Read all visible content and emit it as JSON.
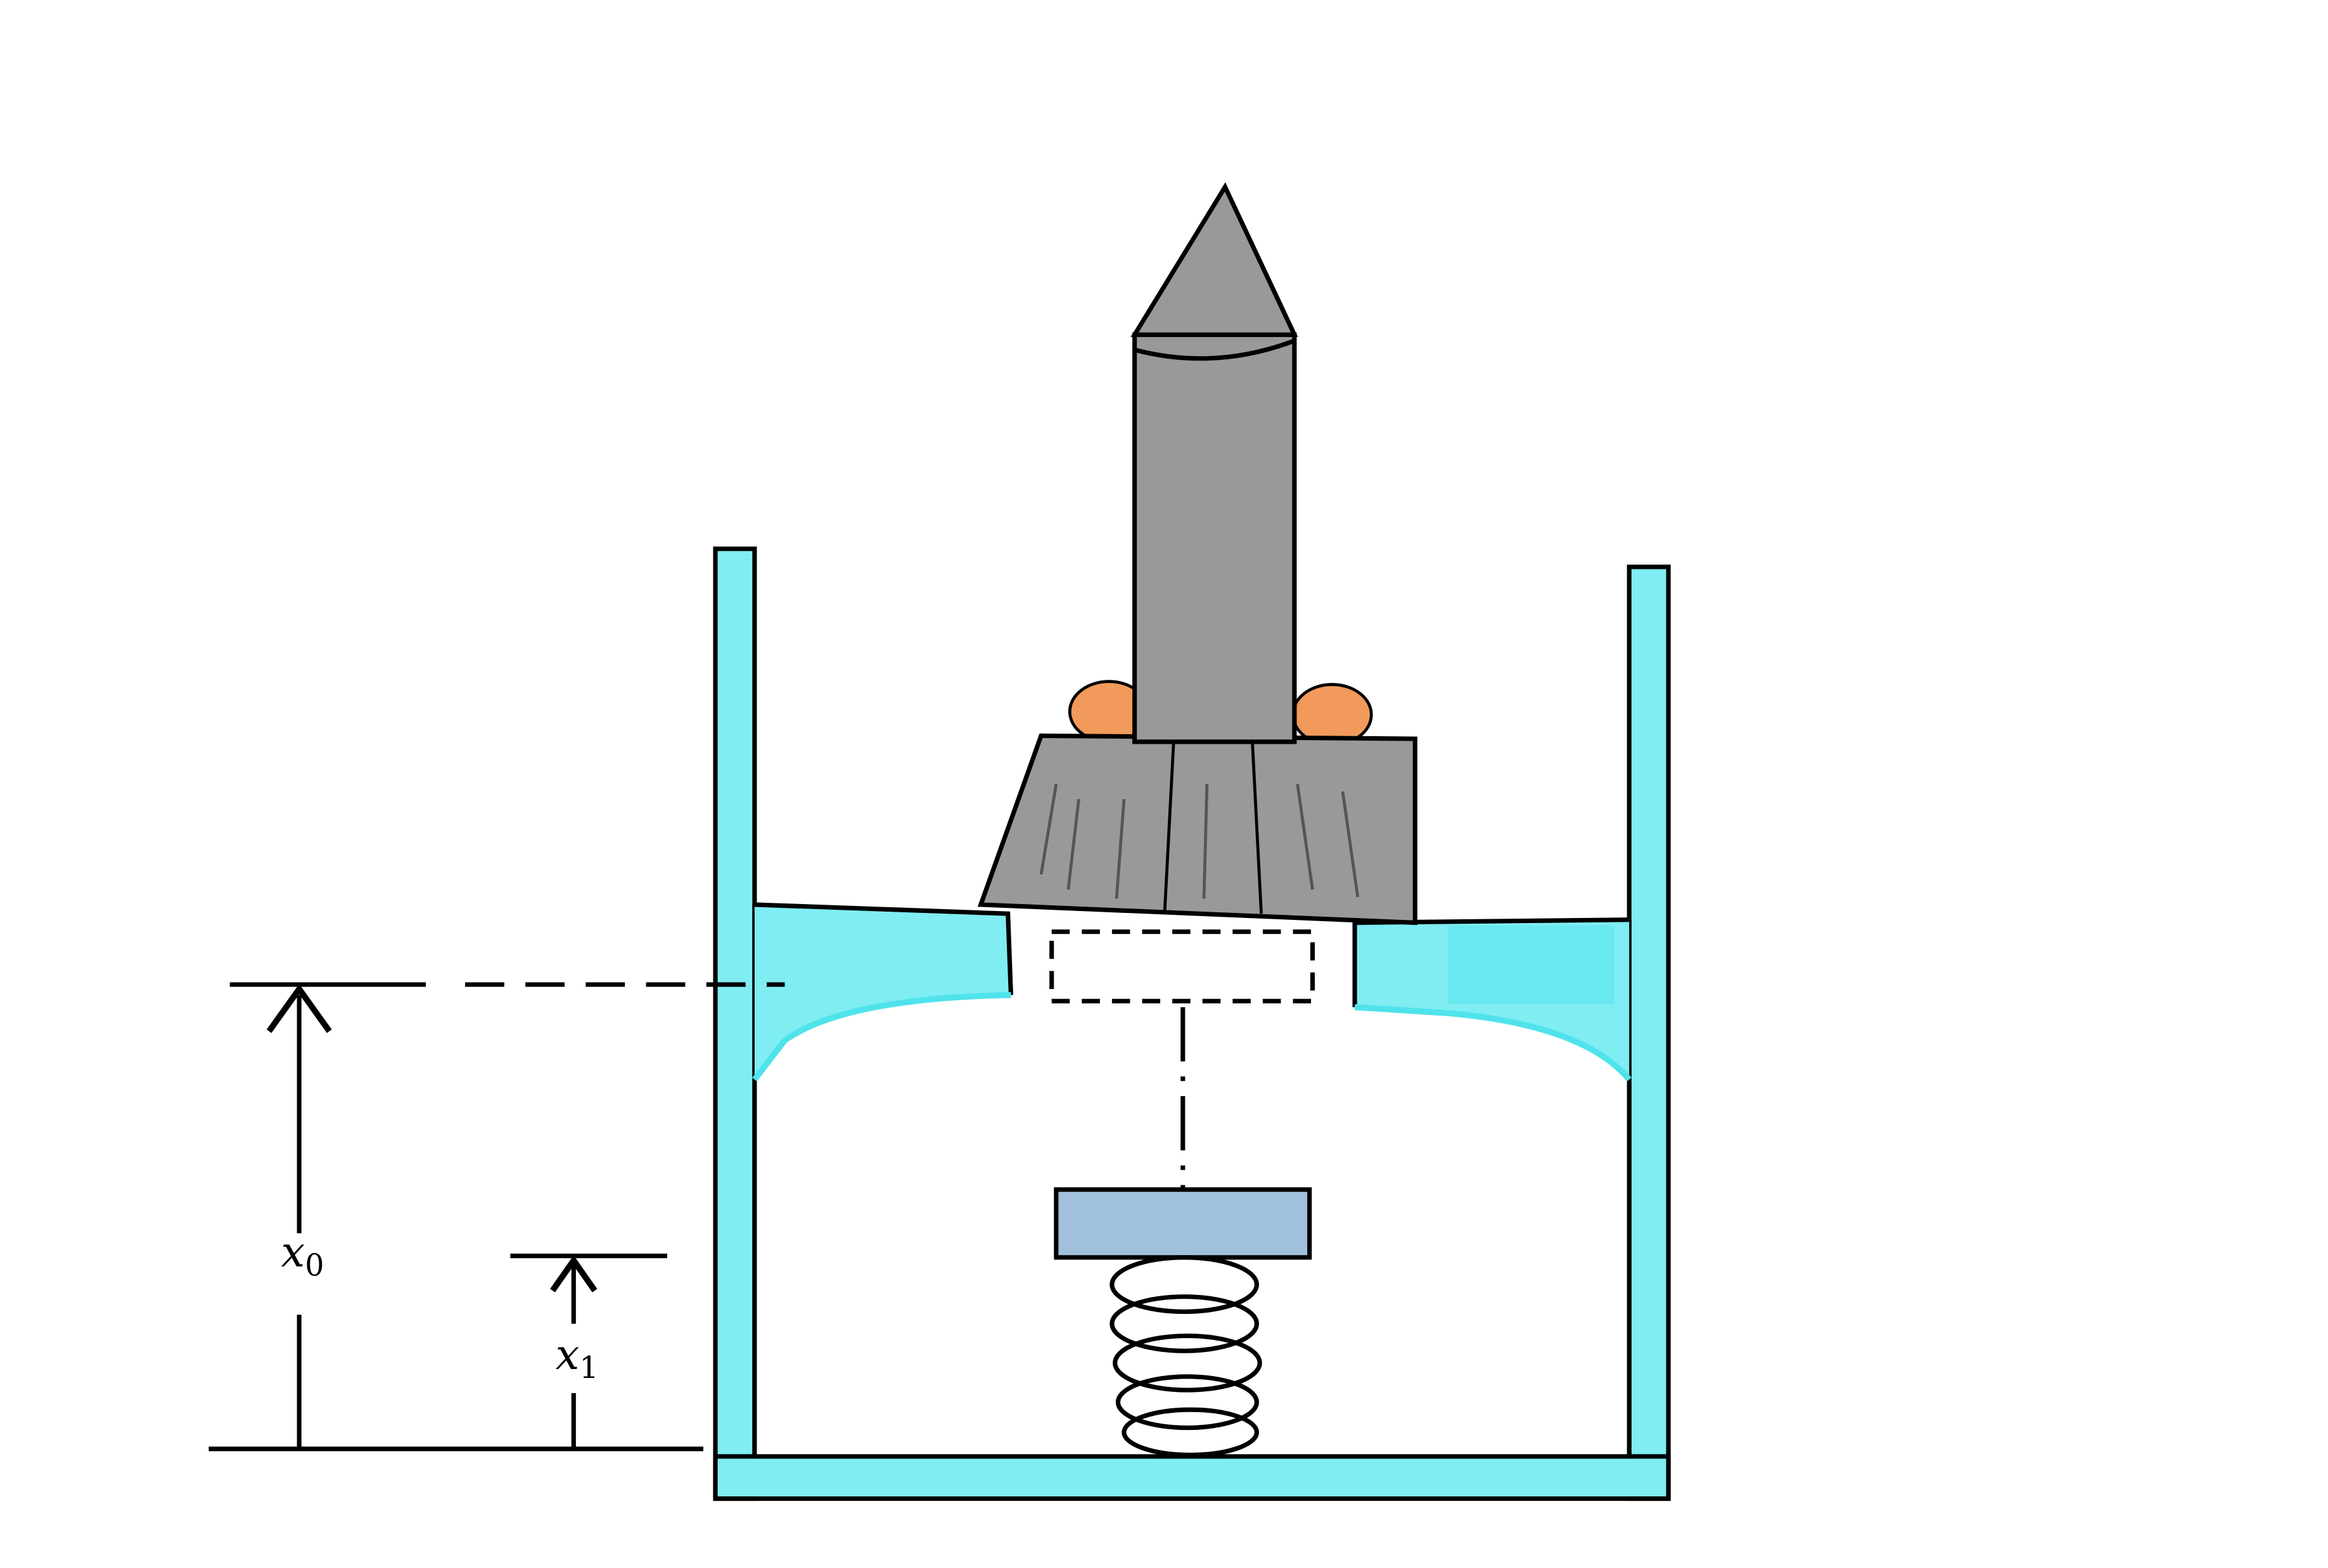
{
  "labels": {
    "x0": {
      "base": "x",
      "sub": "0"
    },
    "x1": {
      "base": "x",
      "sub": "1"
    }
  },
  "colors": {
    "water": "#7FEDF2",
    "water_dark": "#4FE3EC",
    "rocket": "#999999",
    "rocket_outline": "#000000",
    "flame": "#F19A5B",
    "plate": "#A0C0DC",
    "line": "#000000",
    "background": "#FFFFFF"
  },
  "icons": {
    "rocket": "rocket-icon",
    "spring": "spring-icon",
    "arrow": "arrow-up-icon"
  }
}
